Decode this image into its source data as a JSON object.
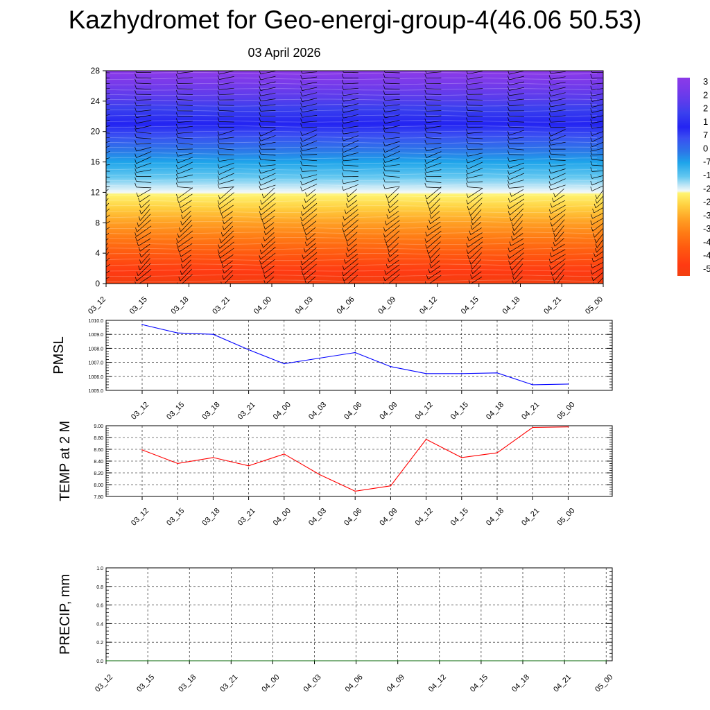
{
  "header": {
    "title": "Kazhydromet for Geo-energi-group-4(46.06 50.53)",
    "date": "03 April 2026"
  },
  "chart_data": [
    {
      "type": "heatmap",
      "name": "vertical-cross-section",
      "title": "",
      "xlabel": "",
      "ylabel": "",
      "x_tick_labels": [
        "03_12",
        "03_15",
        "03_18",
        "03_21",
        "04_00",
        "04_03",
        "04_06",
        "04_09",
        "04_12",
        "04_15",
        "04_18",
        "04_21",
        "05_00"
      ],
      "y_ticks": [
        0,
        4,
        8,
        12,
        16,
        20,
        24,
        28
      ],
      "ylim": [
        0,
        28
      ],
      "color_levels": [
        {
          "z": 0,
          "color": "#f24010"
        },
        {
          "z": 1.5,
          "color": "#ff3a12"
        },
        {
          "z": 4,
          "color": "#ff5a10"
        },
        {
          "z": 6,
          "color": "#ff7a14"
        },
        {
          "z": 8,
          "color": "#ffa024"
        },
        {
          "z": 10,
          "color": "#ffd040"
        },
        {
          "z": 11.7,
          "color": "#fff470"
        },
        {
          "z": 12,
          "color": "#f2f8f8"
        },
        {
          "z": 12.8,
          "color": "#bfe6f6"
        },
        {
          "z": 14,
          "color": "#64c8f0"
        },
        {
          "z": 16,
          "color": "#1ea4ea"
        },
        {
          "z": 17.5,
          "color": "#2c78e8"
        },
        {
          "z": 19.5,
          "color": "#3a4ef2"
        },
        {
          "z": 21,
          "color": "#2424f2"
        },
        {
          "z": 23,
          "color": "#3a40ee"
        },
        {
          "z": 24.5,
          "color": "#5a3cec"
        },
        {
          "z": 26.5,
          "color": "#7a3aea"
        },
        {
          "z": 28,
          "color": "#8c3ae8"
        }
      ],
      "colorbar_labels": [
        "3",
        "2",
        "2",
        "1",
        "7",
        "0",
        "-7",
        "-1",
        "-2",
        "-2",
        "-3",
        "-3",
        "-4",
        "-4",
        "-5"
      ]
    },
    {
      "type": "line",
      "name": "pmsl",
      "title": "",
      "xlabel": "",
      "ylabel": "PMSL",
      "categories": [
        "03_12",
        "03_15",
        "03_18",
        "03_21",
        "04_00",
        "04_03",
        "04_06",
        "04_09",
        "04_12",
        "04_15",
        "04_18",
        "04_21",
        "05_00"
      ],
      "values": [
        1009.7,
        1009.1,
        1009.0,
        1007.9,
        1006.9,
        1007.3,
        1007.7,
        1006.7,
        1006.2,
        1006.2,
        1006.25,
        1005.4,
        1005.45
      ],
      "y_ticks": [
        "1005.0",
        "1006.0",
        "1007.0",
        "1008.0",
        "1009.0",
        "1010.0"
      ],
      "ylim": [
        1005.0,
        1010.0
      ],
      "line_color": "#0000ff",
      "grid": true
    },
    {
      "type": "line",
      "name": "temp-2m",
      "title": "",
      "xlabel": "",
      "ylabel": "TEMP at 2 M",
      "categories": [
        "03_12",
        "03_15",
        "03_18",
        "03_21",
        "04_00",
        "04_03",
        "04_06",
        "04_09",
        "04_12",
        "04_15",
        "04_18",
        "04_21",
        "05_00"
      ],
      "values": [
        8.59,
        8.36,
        8.46,
        8.32,
        8.52,
        8.17,
        7.89,
        7.98,
        8.77,
        8.46,
        8.54,
        8.97,
        8.98
      ],
      "y_ticks": [
        "7.80",
        "8.00",
        "8.20",
        "8.40",
        "8.60",
        "8.80",
        "9.00"
      ],
      "ylim": [
        7.8,
        9.0
      ],
      "line_color": "#ff0000",
      "grid": true
    },
    {
      "type": "line",
      "name": "precip",
      "title": "",
      "xlabel": "",
      "ylabel": "PRECIP, mm",
      "categories": [
        "03_12",
        "03_15",
        "03_18",
        "03_21",
        "04_00",
        "04_03",
        "04_06",
        "04_09",
        "04_12",
        "04_15",
        "04_18",
        "04_21",
        "05_00"
      ],
      "values": [
        0,
        0,
        0,
        0,
        0,
        0,
        0,
        0,
        0,
        0,
        0,
        0,
        0
      ],
      "y_ticks": [
        "0.0",
        "0.2",
        "0.4",
        "0.6",
        "0.8",
        "1.0"
      ],
      "ylim": [
        0,
        1.0
      ],
      "line_color": "#006400",
      "grid": true
    }
  ]
}
